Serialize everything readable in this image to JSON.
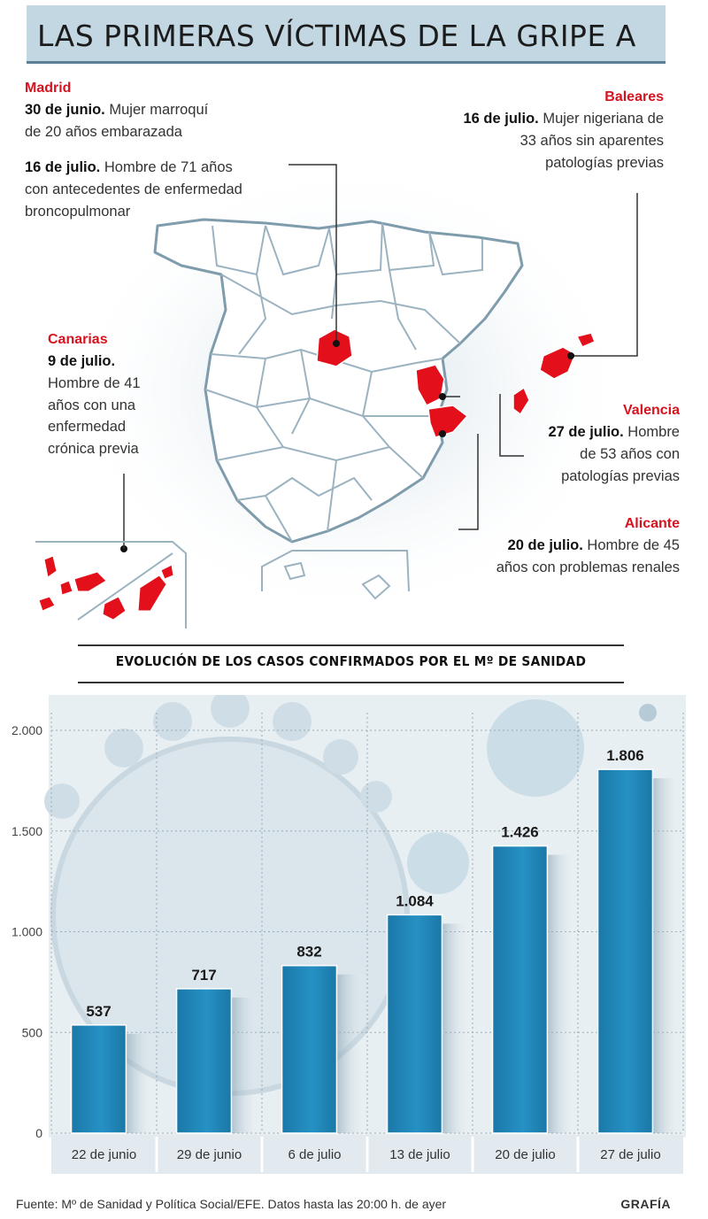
{
  "title": "LAS PRIMERAS VÍCTIMAS DE LA GRIPE A",
  "colors": {
    "accent_red": "#d7131f",
    "bar_blue": "#1f84b6",
    "title_band": "#c3d7e2"
  },
  "regions": {
    "madrid": {
      "name": "Madrid",
      "case1_date": "30 de junio.",
      "case1_line1": " Mujer marroquí",
      "case1_line2": "de 20 años embarazada",
      "case2_date": "16 de julio.",
      "case2_line1": " Hombre de 71 años",
      "case2_line2": "con antecedentes de enfermedad",
      "case2_line3": "broncopulmonar"
    },
    "baleares": {
      "name": "Baleares",
      "date": "16 de julio.",
      "line1": " Mujer nigeriana de",
      "line2": "33 años sin aparentes",
      "line3": "patologías previas"
    },
    "canarias": {
      "name": "Canarias",
      "date": "9 de julio.",
      "line1": "Hombre de 41",
      "line2": "años con una",
      "line3": "enfermedad",
      "line4": "crónica previa"
    },
    "valencia": {
      "name": "Valencia",
      "date": "27 de julio.",
      "line1": " Hombre",
      "line2": "de 53 años con",
      "line3": "patologías previas"
    },
    "alicante": {
      "name": "Alicante",
      "date": "20 de julio.",
      "line1": " Hombre de 45",
      "line2": "años con problemas renales"
    }
  },
  "chart_title": "EVOLUCIÓN DE LOS CASOS CONFIRMADOS POR EL Mº DE SANIDAD",
  "chart_data": {
    "type": "bar",
    "categories": [
      "22 de junio",
      "29 de junio",
      "6 de julio",
      "13 de julio",
      "20 de julio",
      "27 de julio"
    ],
    "values": [
      537,
      717,
      832,
      1084,
      1426,
      1806
    ],
    "value_labels": [
      "537",
      "717",
      "832",
      "1.084",
      "1.426",
      "1.806"
    ],
    "title": "EVOLUCIÓN DE LOS CASOS CONFIRMADOS POR EL Mº DE SANIDAD",
    "xlabel": "",
    "ylabel": "",
    "ylim": [
      0,
      2000
    ],
    "yticks": [
      0,
      500,
      1000,
      1500,
      2000
    ],
    "ytick_labels": [
      "0",
      "500",
      "1.000",
      "1.500",
      "2.000"
    ],
    "grid": true,
    "color": "#1f84b6"
  },
  "footer": {
    "source": "Fuente: Mº de Sanidad y Política Social/EFE. Datos hasta las 20:00 h. de ayer",
    "brand": "GRAFÍA"
  }
}
